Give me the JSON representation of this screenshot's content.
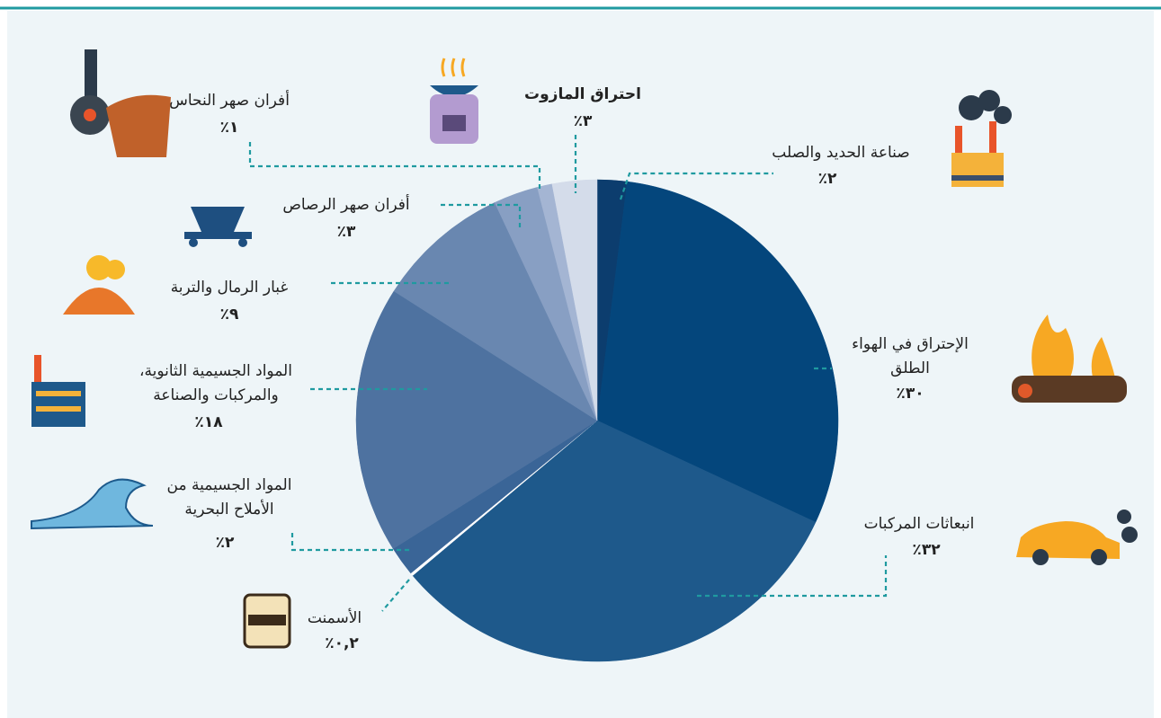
{
  "chart_data": {
    "type": "pie",
    "categories": [
      [
        "صناعة الحديد والصلب"
      ],
      [
        "الإحتراق في الهواء",
        "الطلق"
      ],
      [
        "انبعاثات المركبات"
      ],
      [
        "الأسمنت"
      ],
      [
        "المواد الجسيمية من",
        "الأملاح البحرية"
      ],
      [
        "المواد الجسيمية الثانوية،",
        "والمركبات والصناعة"
      ],
      [
        "غبار الرمال والتربة"
      ],
      [
        "أفران صهر الرصاص"
      ],
      [
        "أفران صهر النحاس"
      ],
      [
        "احتراق المازوت"
      ]
    ],
    "values": [
      2,
      30,
      32,
      0.2,
      2,
      18,
      9,
      3,
      1,
      3
    ],
    "value_labels": [
      "٪٢",
      "٪٣٠",
      "٪٣٢",
      "٪٠,٢",
      "٪٢",
      "٪١٨",
      "٪٩",
      "٪٣",
      "٪١",
      "٪٣"
    ],
    "colors": [
      "#0c3d6e",
      "#04467c",
      "#1e598b",
      "#ffffff",
      "#3a6597",
      "#4e72a0",
      "#6987b0",
      "#889fc3",
      "#a4b5d3",
      "#d4dcea"
    ]
  }
}
